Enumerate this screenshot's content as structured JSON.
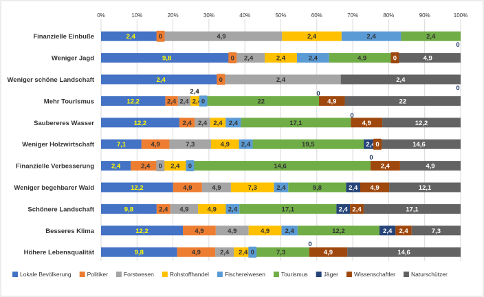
{
  "chart_data": {
    "type": "bar",
    "orientation": "horizontal",
    "stacked": true,
    "percent": true,
    "title": "",
    "xlim": [
      0,
      100
    ],
    "x_ticks": [
      "0%",
      "10%",
      "20%",
      "30%",
      "40%",
      "50%",
      "60%",
      "70%",
      "80%",
      "90%",
      "100%"
    ],
    "grid": true,
    "legend_position": "bottom",
    "categories": [
      "Finanzielle Einbuße",
      "Weniger Jagd",
      "Weniger schöne Landschaft",
      "Mehr Tourismus",
      "Saubereres Wasser",
      "Weniger Holzwirtschaft",
      "Finanzielle Verbesserung",
      "Weniger begehbarer Wald",
      "Schönere Landschaft",
      "Besseres Klima",
      "Höhere Lebensqualität"
    ],
    "series": [
      {
        "name": "Lokale Bevölkerung",
        "color": "#4472C4",
        "label_color": "#FFFF00",
        "values": [
          2.4,
          9.8,
          2.4,
          12.2,
          12.2,
          7.1,
          2.4,
          12.2,
          9.8,
          12.2,
          9.8
        ],
        "labels": [
          "2,4",
          "9,8",
          "2,4",
          "12,2",
          "12,2",
          "7,1",
          "2,4",
          "12,2",
          "9,8",
          "12,2",
          "9,8"
        ]
      },
      {
        "name": "Politiker",
        "color": "#ED7D31",
        "label_color": "#333333",
        "values": [
          0,
          0,
          0,
          2.4,
          2.4,
          4.9,
          2.4,
          4.9,
          2.4,
          4.9,
          4.9
        ],
        "labels": [
          "0",
          "0",
          "0",
          "2,4",
          "2,4",
          "4,9",
          "2,4",
          "4,9",
          "2,4",
          "4,9",
          "4,9"
        ]
      },
      {
        "name": "Forstwesen",
        "color": "#A5A5A5",
        "label_color": "#333333",
        "values": [
          4.9,
          2.4,
          2.4,
          2.4,
          2.4,
          7.3,
          0,
          4.9,
          4.9,
          4.9,
          2.4
        ],
        "labels": [
          "4,9",
          "2,4",
          "2,4",
          "2,4",
          "2,4",
          "7,3",
          "0",
          "4,9",
          "4,9",
          "4,9",
          "2,4"
        ]
      },
      {
        "name": "Rohstoffhandel",
        "color": "#FFC000",
        "label_color": "#333333",
        "values": [
          2.4,
          2.4,
          0,
          2.4,
          2.4,
          4.9,
          2.4,
          7.3,
          4.9,
          4.9,
          2.4
        ],
        "labels": [
          "2,4",
          "2,4",
          "",
          "2,4",
          "2,4",
          "4,9",
          "2,4",
          "7,3",
          "4,9",
          "4,9",
          "2,4"
        ]
      },
      {
        "name": "Fischereiwesen",
        "color": "#5B9BD5",
        "label_color": "#333333",
        "values": [
          2.4,
          2.4,
          0,
          0,
          2.4,
          2.4,
          0,
          2.4,
          2.4,
          2.4,
          0
        ],
        "labels": [
          "2,4",
          "2,4",
          "",
          "0",
          "2,4",
          "2,4",
          "0",
          "2,4",
          "2,4",
          "2,4",
          "0"
        ]
      },
      {
        "name": "Tourismus",
        "color": "#70AD47",
        "label_color": "#333333",
        "values": [
          2.4,
          4.9,
          0,
          22,
          17.1,
          19.5,
          14.6,
          9.8,
          17.1,
          12.2,
          7.3
        ],
        "labels": [
          "2,4",
          "4,9",
          "",
          "22",
          "17,1",
          "19,5",
          "14,6",
          "9,8",
          "17,1",
          "12,2",
          "7,3"
        ]
      },
      {
        "name": "Jäger",
        "color": "#264478",
        "label_color": "#FFFFFF",
        "values": [
          0,
          0,
          0,
          0,
          0,
          2.4,
          0,
          2.4,
          2.4,
          2.4,
          0
        ],
        "labels": [
          "",
          "",
          "",
          "",
          "",
          "2,4",
          "",
          "2,4",
          "2,4",
          "2,4",
          ""
        ]
      },
      {
        "name": "Wissenschaftler",
        "color": "#9E480E",
        "label_color": "#FFFFFF",
        "values": [
          0,
          0,
          0,
          4.9,
          4.9,
          0,
          2.4,
          4.9,
          2.4,
          2.4,
          4.9
        ],
        "labels": [
          "",
          "0",
          "",
          "4,9",
          "4,9",
          "0",
          "2,4",
          "4,9",
          "2,4",
          "2,4",
          "4,9"
        ]
      },
      {
        "name": "Naturschützer",
        "color": "#636363",
        "label_color": "#FFFFFF",
        "values": [
          0,
          4.9,
          2.4,
          22,
          12.2,
          14.6,
          4.9,
          12.1,
          17.1,
          7.3,
          14.6
        ],
        "labels": [
          "",
          "4,9",
          "2,4",
          "22",
          "12,2",
          "14,6",
          "4,9",
          "12,1",
          "17,1",
          "7,3",
          "14,6"
        ]
      }
    ],
    "annotations": [
      {
        "category_index": 0,
        "text": "0"
      },
      {
        "category_index": 2,
        "text": "0"
      },
      {
        "category_index": 3,
        "text": "2,4"
      },
      {
        "category_index": 3,
        "text": "0"
      },
      {
        "category_index": 4,
        "text": "0"
      },
      {
        "category_index": 6,
        "text": "0"
      },
      {
        "category_index": 10,
        "text": "0"
      }
    ]
  }
}
